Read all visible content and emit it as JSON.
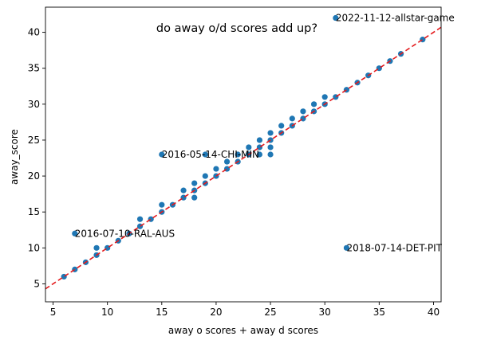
{
  "chart_data": {
    "type": "scatter",
    "title": "do away o/d scores add up?",
    "xlabel": "away o scores + away d scores",
    "ylabel": "away_score",
    "xlim": [
      4.3,
      40.7
    ],
    "ylim": [
      2.5,
      43.5
    ],
    "xticks": [
      5,
      10,
      15,
      20,
      25,
      30,
      35,
      40
    ],
    "yticks": [
      5,
      10,
      15,
      20,
      25,
      30,
      35,
      40
    ],
    "grid": false,
    "point_color": "#1f77b4",
    "reference_line": {
      "style": "dashed",
      "color": "#e41a1c",
      "slope": 1,
      "intercept": 0
    },
    "series": [
      {
        "points": [
          [
            6,
            6
          ],
          [
            7,
            7
          ],
          [
            7,
            12
          ],
          [
            8,
            8
          ],
          [
            9,
            9
          ],
          [
            9,
            10
          ],
          [
            10,
            10
          ],
          [
            11,
            11
          ],
          [
            12,
            12
          ],
          [
            13,
            13
          ],
          [
            13,
            14
          ],
          [
            14,
            14
          ],
          [
            15,
            15
          ],
          [
            15,
            16
          ],
          [
            15,
            23
          ],
          [
            16,
            16
          ],
          [
            17,
            17
          ],
          [
            17,
            18
          ],
          [
            18,
            17
          ],
          [
            18,
            18
          ],
          [
            18,
            19
          ],
          [
            19,
            19
          ],
          [
            19,
            20
          ],
          [
            19,
            23
          ],
          [
            20,
            20
          ],
          [
            20,
            21
          ],
          [
            21,
            21
          ],
          [
            21,
            22
          ],
          [
            22,
            22
          ],
          [
            22,
            23
          ],
          [
            23,
            23
          ],
          [
            23,
            24
          ],
          [
            24,
            23
          ],
          [
            24,
            24
          ],
          [
            24,
            25
          ],
          [
            25,
            23
          ],
          [
            25,
            24
          ],
          [
            25,
            25
          ],
          [
            25,
            26
          ],
          [
            26,
            26
          ],
          [
            26,
            27
          ],
          [
            27,
            27
          ],
          [
            27,
            28
          ],
          [
            28,
            28
          ],
          [
            28,
            29
          ],
          [
            29,
            29
          ],
          [
            29,
            30
          ],
          [
            30,
            30
          ],
          [
            30,
            31
          ],
          [
            31,
            31
          ],
          [
            31,
            42
          ],
          [
            32,
            10
          ],
          [
            32,
            32
          ],
          [
            33,
            33
          ],
          [
            34,
            34
          ],
          [
            35,
            35
          ],
          [
            36,
            36
          ],
          [
            37,
            37
          ],
          [
            39,
            39
          ]
        ]
      }
    ],
    "annotations": [
      {
        "text": "2022-11-12-allstar-game",
        "x": 31,
        "y": 42
      },
      {
        "text": "2016-05-14-CHI-MIN",
        "x": 15,
        "y": 23
      },
      {
        "text": "2016-07-10-RAL-AUS",
        "x": 7,
        "y": 12
      },
      {
        "text": "2018-07-14-DET-PIT",
        "x": 32,
        "y": 10
      }
    ]
  }
}
